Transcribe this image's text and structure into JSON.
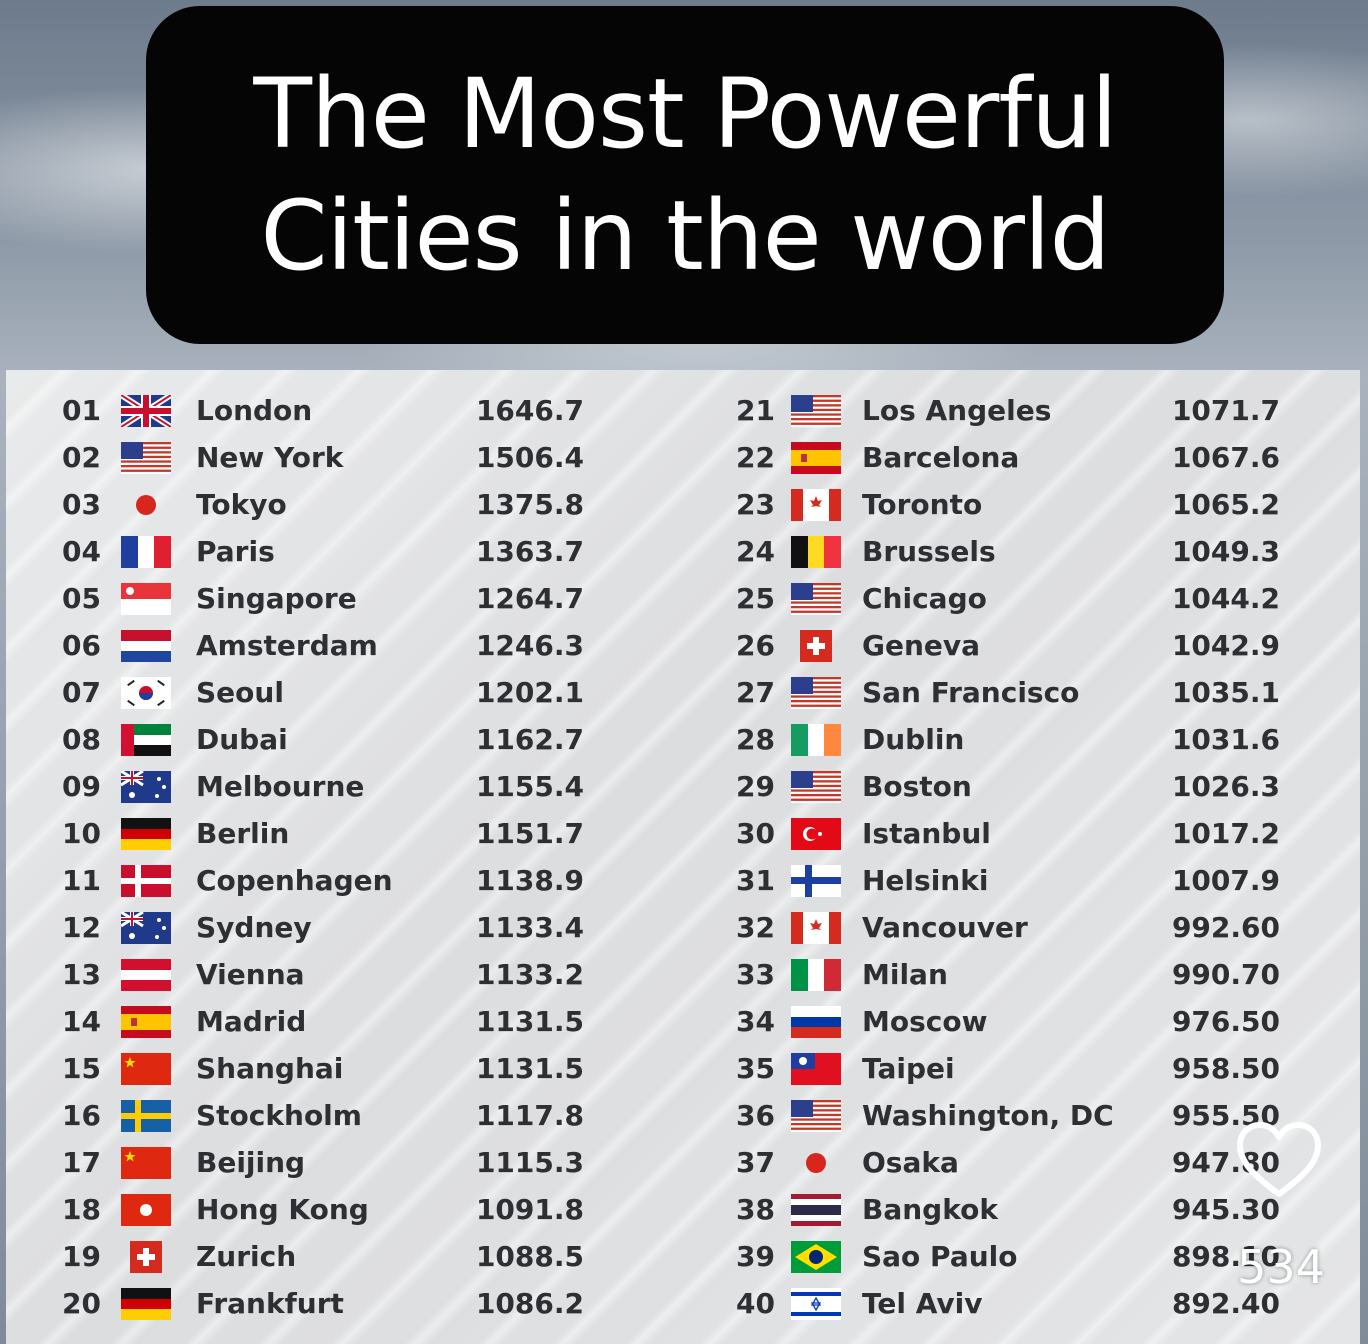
{
  "title": {
    "line1": "The Most Powerful",
    "line2": "Cities in the world"
  },
  "rankings": [
    {
      "rank": "01",
      "flag": "uk-flag-icon",
      "city": "London",
      "score": "1646.7"
    },
    {
      "rank": "02",
      "flag": "us-flag-icon",
      "city": "New York",
      "score": "1506.4"
    },
    {
      "rank": "03",
      "flag": "japan-flag-icon",
      "city": "Tokyo",
      "score": "1375.8"
    },
    {
      "rank": "04",
      "flag": "france-flag-icon",
      "city": "Paris",
      "score": "1363.7"
    },
    {
      "rank": "05",
      "flag": "singapore-flag-icon",
      "city": "Singapore",
      "score": "1264.7"
    },
    {
      "rank": "06",
      "flag": "netherlands-flag-icon",
      "city": "Amsterdam",
      "score": "1246.3"
    },
    {
      "rank": "07",
      "flag": "south-korea-flag-icon",
      "city": "Seoul",
      "score": "1202.1"
    },
    {
      "rank": "08",
      "flag": "uae-flag-icon",
      "city": "Dubai",
      "score": "1162.7"
    },
    {
      "rank": "09",
      "flag": "australia-flag-icon",
      "city": "Melbourne",
      "score": "1155.4"
    },
    {
      "rank": "10",
      "flag": "germany-flag-icon",
      "city": "Berlin",
      "score": "1151.7"
    },
    {
      "rank": "11",
      "flag": "denmark-flag-icon",
      "city": "Copenhagen",
      "score": "1138.9"
    },
    {
      "rank": "12",
      "flag": "australia-flag-icon",
      "city": "Sydney",
      "score": "1133.4"
    },
    {
      "rank": "13",
      "flag": "austria-flag-icon",
      "city": "Vienna",
      "score": "1133.2"
    },
    {
      "rank": "14",
      "flag": "spain-flag-icon",
      "city": "Madrid",
      "score": "1131.5"
    },
    {
      "rank": "15",
      "flag": "china-flag-icon",
      "city": "Shanghai",
      "score": "1131.5"
    },
    {
      "rank": "16",
      "flag": "sweden-flag-icon",
      "city": "Stockholm",
      "score": "1117.8"
    },
    {
      "rank": "17",
      "flag": "china-flag-icon",
      "city": "Beijing",
      "score": "1115.3"
    },
    {
      "rank": "18",
      "flag": "hong-kong-flag-icon",
      "city": "Hong Kong",
      "score": "1091.8"
    },
    {
      "rank": "19",
      "flag": "switzerland-flag-icon",
      "city": "Zurich",
      "score": "1088.5"
    },
    {
      "rank": "20",
      "flag": "germany-flag-icon",
      "city": "Frankfurt",
      "score": "1086.2"
    },
    {
      "rank": "21",
      "flag": "us-flag-icon",
      "city": "Los Angeles",
      "score": "1071.7"
    },
    {
      "rank": "22",
      "flag": "spain-flag-icon",
      "city": "Barcelona",
      "score": "1067.6"
    },
    {
      "rank": "23",
      "flag": "canada-flag-icon",
      "city": "Toronto",
      "score": "1065.2"
    },
    {
      "rank": "24",
      "flag": "belgium-flag-icon",
      "city": "Brussels",
      "score": "1049.3"
    },
    {
      "rank": "25",
      "flag": "us-flag-icon",
      "city": "Chicago",
      "score": "1044.2"
    },
    {
      "rank": "26",
      "flag": "switzerland-flag-icon",
      "city": "Geneva",
      "score": "1042.9"
    },
    {
      "rank": "27",
      "flag": "us-flag-icon",
      "city": "San Francisco",
      "score": "1035.1"
    },
    {
      "rank": "28",
      "flag": "ireland-flag-icon",
      "city": "Dublin",
      "score": "1031.6"
    },
    {
      "rank": "29",
      "flag": "us-flag-icon",
      "city": "Boston",
      "score": "1026.3"
    },
    {
      "rank": "30",
      "flag": "turkey-flag-icon",
      "city": "Istanbul",
      "score": "1017.2"
    },
    {
      "rank": "31",
      "flag": "finland-flag-icon",
      "city": "Helsinki",
      "score": "1007.9"
    },
    {
      "rank": "32",
      "flag": "canada-flag-icon",
      "city": "Vancouver",
      "score": "992.60"
    },
    {
      "rank": "33",
      "flag": "italy-flag-icon",
      "city": "Milan",
      "score": "990.70"
    },
    {
      "rank": "34",
      "flag": "russia-flag-icon",
      "city": "Moscow",
      "score": "976.50"
    },
    {
      "rank": "35",
      "flag": "taiwan-flag-icon",
      "city": "Taipei",
      "score": "958.50"
    },
    {
      "rank": "36",
      "flag": "us-flag-icon",
      "city": "Washington, DC",
      "score": "955.50"
    },
    {
      "rank": "37",
      "flag": "japan-flag-icon",
      "city": "Osaka",
      "score": "947.80"
    },
    {
      "rank": "38",
      "flag": "thailand-flag-icon",
      "city": "Bangkok",
      "score": "945.30"
    },
    {
      "rank": "39",
      "flag": "brazil-flag-icon",
      "city": "Sao Paulo",
      "score": "898.10"
    },
    {
      "rank": "40",
      "flag": "israel-flag-icon",
      "city": "Tel Aviv",
      "score": "892.40"
    }
  ],
  "overlay": {
    "like_icon": "heart-icon",
    "like_count": "534"
  }
}
